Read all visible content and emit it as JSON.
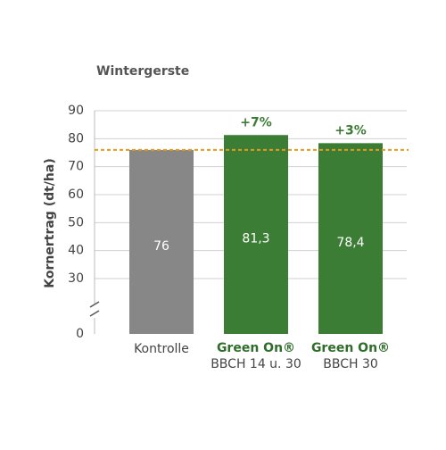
{
  "chart_data": {
    "type": "bar",
    "title": "Wintergerste",
    "y_label": "Kornertrag (dt/ha)",
    "categories": [
      "Kontrolle",
      "BBCH 14 u. 30",
      "BBCH 30"
    ],
    "brand": [
      null,
      "Green On®",
      "Green On®"
    ],
    "values": [
      76,
      81.3,
      78.4
    ],
    "value_labels": [
      "76",
      "81,3",
      "78,4"
    ],
    "annotations": [
      null,
      "+7%",
      "+3%"
    ],
    "colors": [
      "#878787",
      "#3b7d34",
      "#3b7d34"
    ],
    "ylim": [
      0,
      90
    ],
    "yticks": [
      0,
      30,
      40,
      50,
      60,
      70,
      80,
      90
    ],
    "axis_break": [
      0,
      30
    ],
    "reference_line": 76,
    "reference_color": "#e39b1c",
    "grid": true
  }
}
